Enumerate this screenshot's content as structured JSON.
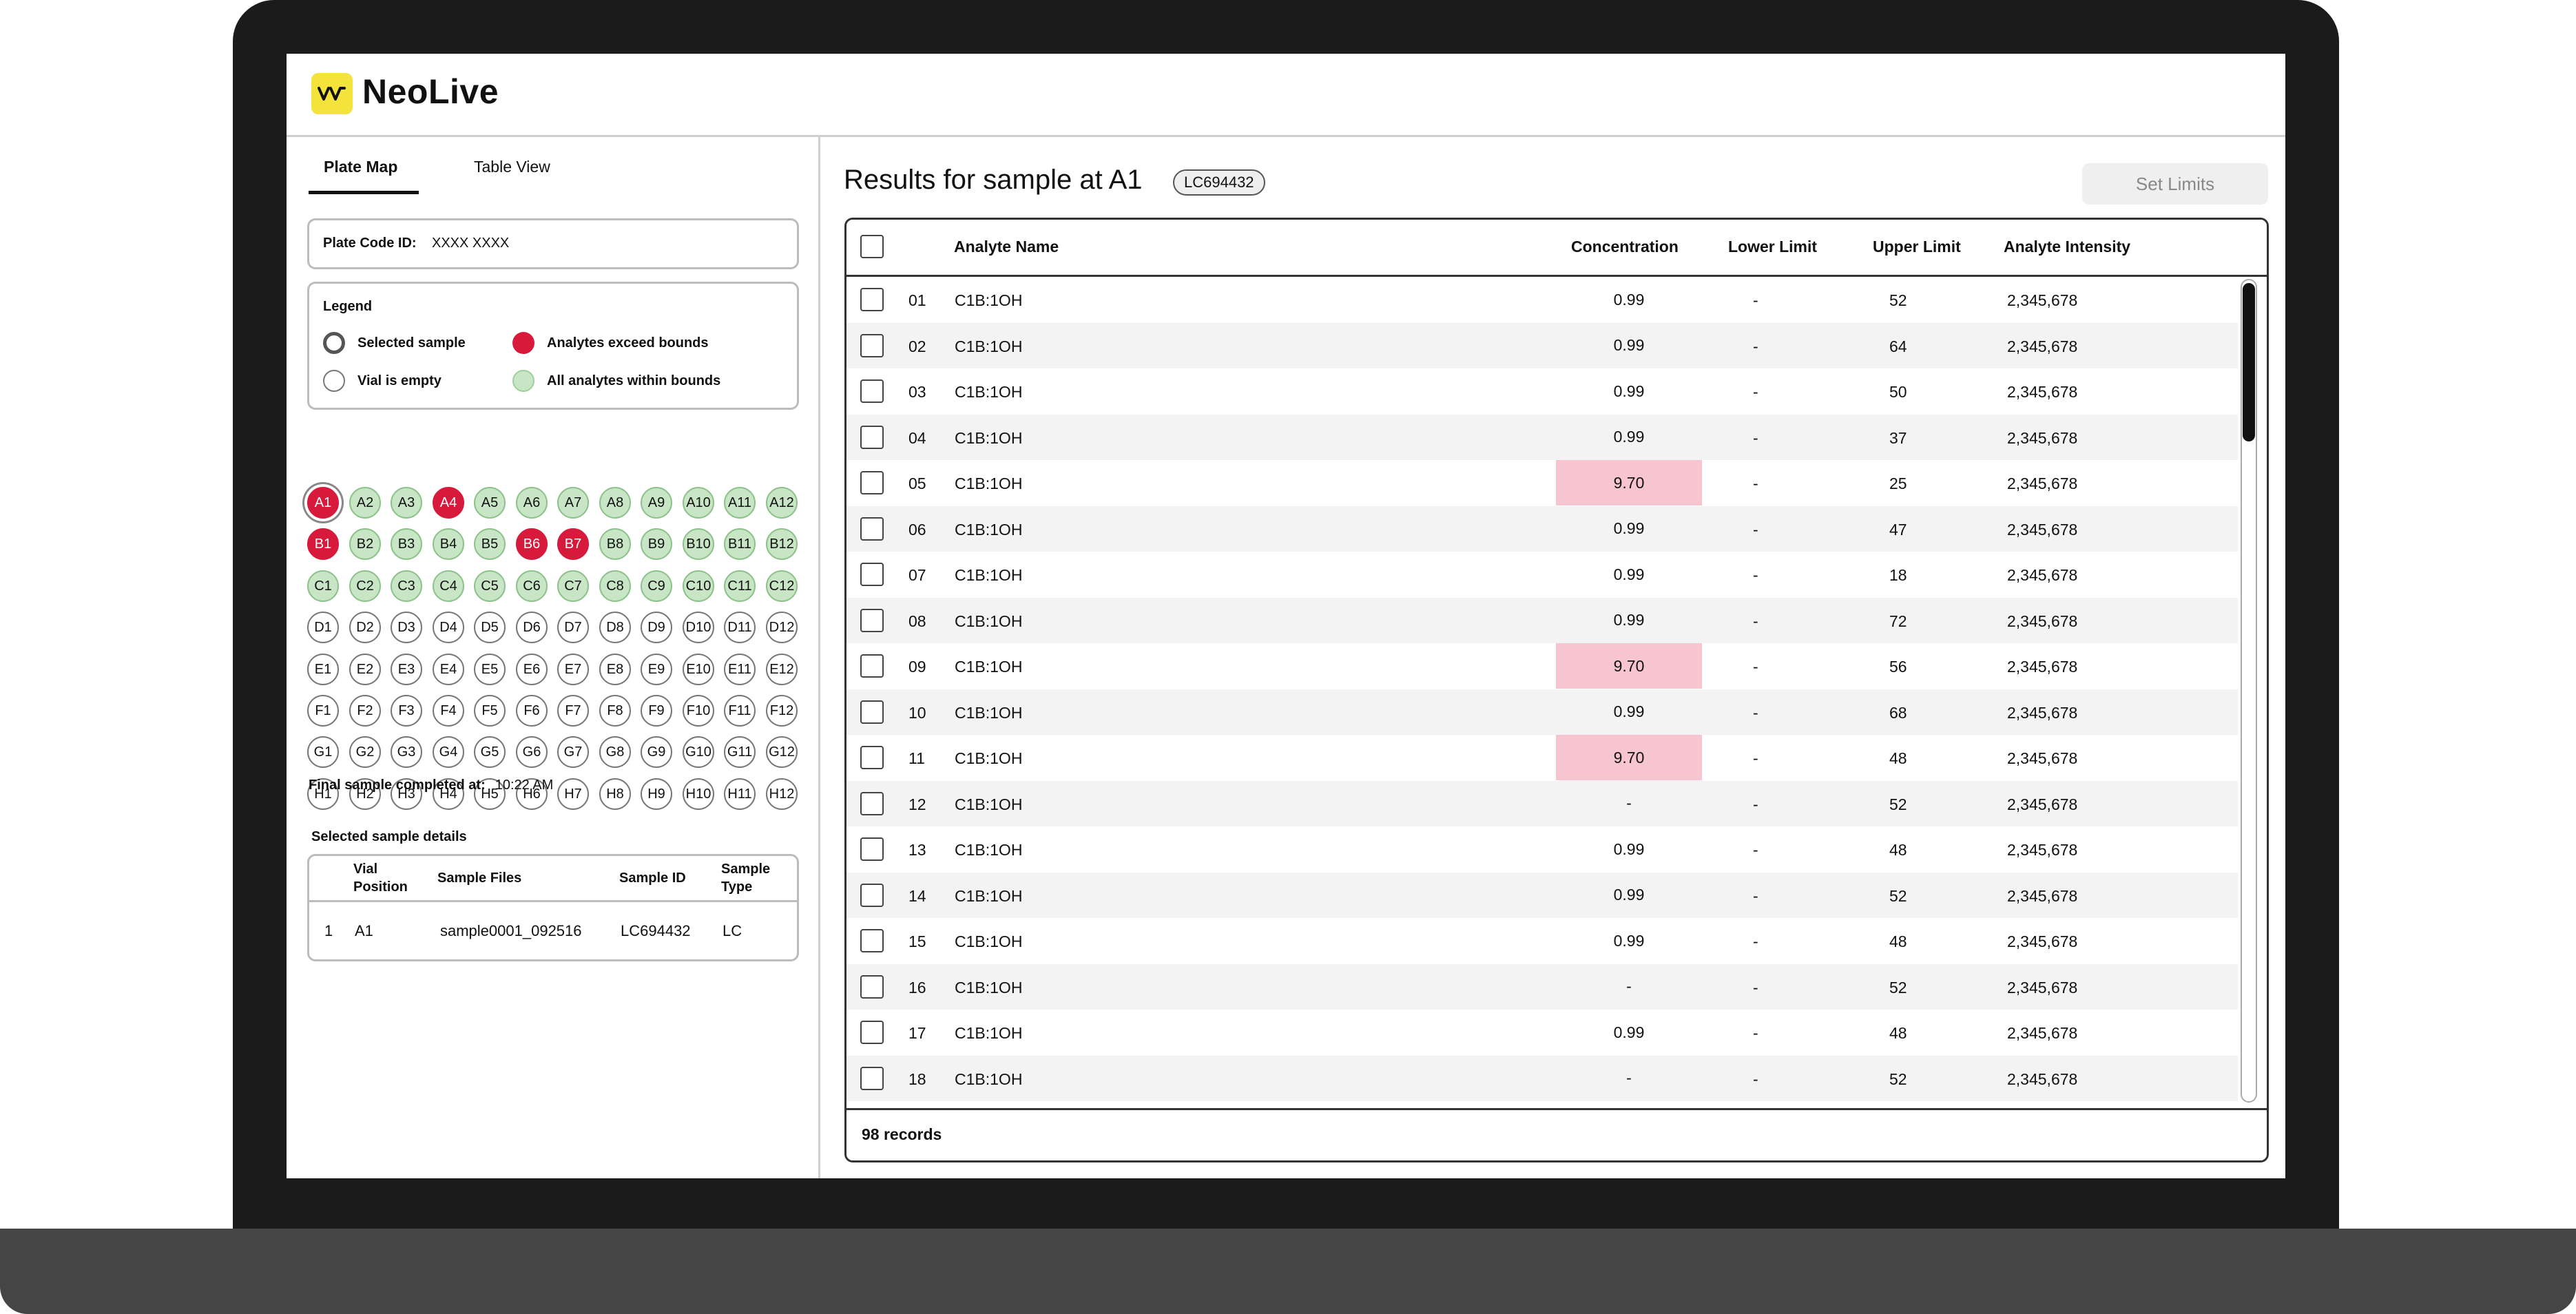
{
  "app": {
    "name": "NeoLive"
  },
  "tabs": [
    {
      "label": "Plate Map"
    },
    {
      "label": "Table View"
    }
  ],
  "plate_code": {
    "label": "Plate Code ID:",
    "value": "XXXX XXXX"
  },
  "legend": {
    "title": "Legend",
    "selected": "Selected sample",
    "exceed": "Analytes exceed bounds",
    "empty": "Vial is empty",
    "within": "All analytes within bounds"
  },
  "colors": {
    "exceed": "#d71a3c",
    "within": "#c8e6c6",
    "highlight": "#f6c5cf",
    "logo": "#f3e33a"
  },
  "plate": {
    "rows": [
      "A",
      "B",
      "C",
      "D",
      "E",
      "F",
      "G",
      "H"
    ],
    "cols": 12,
    "within_rows": [
      "A",
      "B",
      "C"
    ],
    "exceed": [
      "A1",
      "A4",
      "B1",
      "B6",
      "B7"
    ],
    "selected": "A1"
  },
  "final": {
    "label": "Final sample completed at:",
    "time": "10:22 AM"
  },
  "selected_details": {
    "title": "Selected sample details",
    "headers": {
      "vial_line1": "Vial",
      "vial_line2": "Position",
      "files": "Sample Files",
      "id": "Sample ID",
      "type_line1": "Sample",
      "type_line2": "Type"
    },
    "row": {
      "num": "1",
      "vial": "A1",
      "file": "sample0001_092516",
      "id": "LC694432",
      "type": "LC"
    }
  },
  "results": {
    "title": "Results for sample at A1",
    "code": "LC694432",
    "set_limits": "Set Limits",
    "headers": {
      "name": "Analyte Name",
      "conc": "Concentration",
      "lower": "Lower Limit",
      "upper": "Upper Limit",
      "intensity": "Analyte Intensity"
    },
    "rows": [
      {
        "num": "01",
        "name": "C1B:1OH",
        "conc": "0.99",
        "high": false,
        "lower": "-",
        "upper": "52",
        "intensity": "2,345,678"
      },
      {
        "num": "02",
        "name": "C1B:1OH",
        "conc": "0.99",
        "high": false,
        "lower": "-",
        "upper": "64",
        "intensity": "2,345,678"
      },
      {
        "num": "03",
        "name": "C1B:1OH",
        "conc": "0.99",
        "high": false,
        "lower": "-",
        "upper": "50",
        "intensity": "2,345,678"
      },
      {
        "num": "04",
        "name": "C1B:1OH",
        "conc": "0.99",
        "high": false,
        "lower": "-",
        "upper": "37",
        "intensity": "2,345,678"
      },
      {
        "num": "05",
        "name": "C1B:1OH",
        "conc": "9.70",
        "high": true,
        "lower": "-",
        "upper": "25",
        "intensity": "2,345,678"
      },
      {
        "num": "06",
        "name": "C1B:1OH",
        "conc": "0.99",
        "high": false,
        "lower": "-",
        "upper": "47",
        "intensity": "2,345,678"
      },
      {
        "num": "07",
        "name": "C1B:1OH",
        "conc": "0.99",
        "high": false,
        "lower": "-",
        "upper": "18",
        "intensity": "2,345,678"
      },
      {
        "num": "08",
        "name": "C1B:1OH",
        "conc": "0.99",
        "high": false,
        "lower": "-",
        "upper": "72",
        "intensity": "2,345,678"
      },
      {
        "num": "09",
        "name": "C1B:1OH",
        "conc": "9.70",
        "high": true,
        "lower": "-",
        "upper": "56",
        "intensity": "2,345,678"
      },
      {
        "num": "10",
        "name": "C1B:1OH",
        "conc": "0.99",
        "high": false,
        "lower": "-",
        "upper": "68",
        "intensity": "2,345,678"
      },
      {
        "num": "11",
        "name": "C1B:1OH",
        "conc": "9.70",
        "high": true,
        "lower": "-",
        "upper": "48",
        "intensity": "2,345,678"
      },
      {
        "num": "12",
        "name": "C1B:1OH",
        "conc": "-",
        "high": false,
        "lower": "-",
        "upper": "52",
        "intensity": "2,345,678"
      },
      {
        "num": "13",
        "name": "C1B:1OH",
        "conc": "0.99",
        "high": false,
        "lower": "-",
        "upper": "48",
        "intensity": "2,345,678"
      },
      {
        "num": "14",
        "name": "C1B:1OH",
        "conc": "0.99",
        "high": false,
        "lower": "-",
        "upper": "52",
        "intensity": "2,345,678"
      },
      {
        "num": "15",
        "name": "C1B:1OH",
        "conc": "0.99",
        "high": false,
        "lower": "-",
        "upper": "48",
        "intensity": "2,345,678"
      },
      {
        "num": "16",
        "name": "C1B:1OH",
        "conc": "-",
        "high": false,
        "lower": "-",
        "upper": "52",
        "intensity": "2,345,678"
      },
      {
        "num": "17",
        "name": "C1B:1OH",
        "conc": "0.99",
        "high": false,
        "lower": "-",
        "upper": "48",
        "intensity": "2,345,678"
      },
      {
        "num": "18",
        "name": "C1B:1OH",
        "conc": "-",
        "high": false,
        "lower": "-",
        "upper": "52",
        "intensity": "2,345,678"
      }
    ],
    "footer": "98 records"
  }
}
